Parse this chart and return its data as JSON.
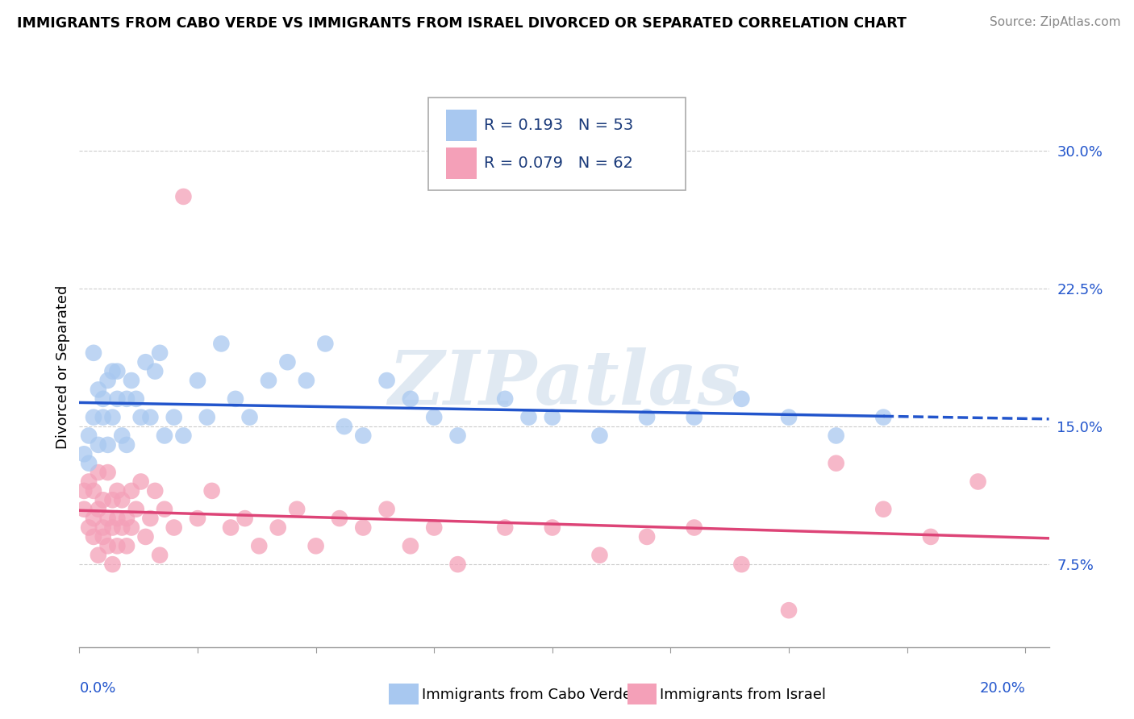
{
  "title": "IMMIGRANTS FROM CABO VERDE VS IMMIGRANTS FROM ISRAEL DIVORCED OR SEPARATED CORRELATION CHART",
  "source": "Source: ZipAtlas.com",
  "ylabel": "Divorced or Separated",
  "y_ticks": [
    0.075,
    0.15,
    0.225,
    0.3
  ],
  "y_tick_labels": [
    "7.5%",
    "15.0%",
    "22.5%",
    "30.0%"
  ],
  "x_lim": [
    0.0,
    0.205
  ],
  "y_lim": [
    0.03,
    0.335
  ],
  "legend_r_blue": "R = 0.193",
  "legend_n_blue": "N = 53",
  "legend_r_pink": "R = 0.079",
  "legend_n_pink": "N = 62",
  "legend_label_blue": "Immigrants from Cabo Verde",
  "legend_label_pink": "Immigrants from Israel",
  "blue_dot_color": "#a8c8f0",
  "pink_dot_color": "#f4a0b8",
  "blue_line_color": "#2255cc",
  "pink_line_color": "#dd4477",
  "tick_label_color": "#2255cc",
  "cabo_verde_x": [
    0.001,
    0.002,
    0.002,
    0.003,
    0.003,
    0.004,
    0.004,
    0.005,
    0.005,
    0.006,
    0.006,
    0.007,
    0.007,
    0.008,
    0.008,
    0.009,
    0.01,
    0.01,
    0.011,
    0.012,
    0.013,
    0.014,
    0.015,
    0.016,
    0.017,
    0.018,
    0.02,
    0.022,
    0.025,
    0.027,
    0.03,
    0.033,
    0.036,
    0.04,
    0.044,
    0.048,
    0.052,
    0.056,
    0.06,
    0.065,
    0.07,
    0.075,
    0.08,
    0.09,
    0.095,
    0.1,
    0.11,
    0.12,
    0.13,
    0.14,
    0.15,
    0.16,
    0.17
  ],
  "cabo_verde_y": [
    0.135,
    0.145,
    0.13,
    0.155,
    0.19,
    0.14,
    0.17,
    0.155,
    0.165,
    0.175,
    0.14,
    0.18,
    0.155,
    0.165,
    0.18,
    0.145,
    0.165,
    0.14,
    0.175,
    0.165,
    0.155,
    0.185,
    0.155,
    0.18,
    0.19,
    0.145,
    0.155,
    0.145,
    0.175,
    0.155,
    0.195,
    0.165,
    0.155,
    0.175,
    0.185,
    0.175,
    0.195,
    0.15,
    0.145,
    0.175,
    0.165,
    0.155,
    0.145,
    0.165,
    0.155,
    0.155,
    0.145,
    0.155,
    0.155,
    0.165,
    0.155,
    0.145,
    0.155
  ],
  "israel_x": [
    0.001,
    0.001,
    0.002,
    0.002,
    0.003,
    0.003,
    0.003,
    0.004,
    0.004,
    0.004,
    0.005,
    0.005,
    0.005,
    0.006,
    0.006,
    0.006,
    0.007,
    0.007,
    0.007,
    0.008,
    0.008,
    0.008,
    0.009,
    0.009,
    0.01,
    0.01,
    0.011,
    0.011,
    0.012,
    0.013,
    0.014,
    0.015,
    0.016,
    0.017,
    0.018,
    0.02,
    0.022,
    0.025,
    0.028,
    0.032,
    0.035,
    0.038,
    0.042,
    0.046,
    0.05,
    0.055,
    0.06,
    0.065,
    0.07,
    0.075,
    0.08,
    0.09,
    0.1,
    0.11,
    0.12,
    0.13,
    0.14,
    0.15,
    0.16,
    0.17,
    0.18,
    0.19
  ],
  "israel_y": [
    0.105,
    0.115,
    0.095,
    0.12,
    0.1,
    0.09,
    0.115,
    0.08,
    0.105,
    0.125,
    0.095,
    0.11,
    0.09,
    0.1,
    0.125,
    0.085,
    0.11,
    0.095,
    0.075,
    0.1,
    0.115,
    0.085,
    0.095,
    0.11,
    0.1,
    0.085,
    0.115,
    0.095,
    0.105,
    0.12,
    0.09,
    0.1,
    0.115,
    0.08,
    0.105,
    0.095,
    0.275,
    0.1,
    0.115,
    0.095,
    0.1,
    0.085,
    0.095,
    0.105,
    0.085,
    0.1,
    0.095,
    0.105,
    0.085,
    0.095,
    0.075,
    0.095,
    0.095,
    0.08,
    0.09,
    0.095,
    0.075,
    0.05,
    0.13,
    0.105,
    0.09,
    0.12
  ]
}
